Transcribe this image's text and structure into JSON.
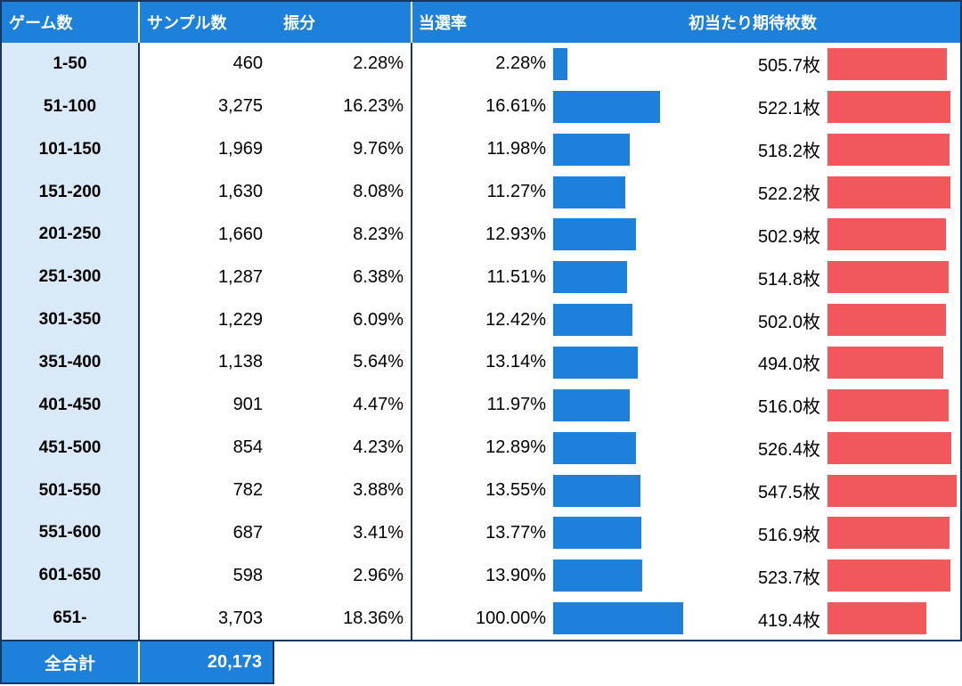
{
  "table": {
    "headers": {
      "games": "ゲーム数",
      "samples": "サンプル数",
      "distribution": "振分",
      "win_rate": "当選率",
      "expected_payout": "初当たり期待枚数"
    },
    "footer": {
      "label": "全合計",
      "total": "20,173"
    }
  },
  "colors": {
    "header_bg": "#1d80da",
    "label_bg": "#d9e9f8",
    "blue_bar": "#1d80da",
    "red_bar": "#f0585c",
    "border": "#16375f",
    "header_text": "#ffffff",
    "text": "#000000"
  },
  "chart_data": {
    "type": "table",
    "columns": [
      "ゲーム数",
      "サンプル数",
      "振分",
      "当選率",
      "初当たり期待枚数"
    ],
    "bar_columns": {
      "当選率": {
        "type": "bar",
        "color": "#1d80da"
      },
      "初当たり期待枚数": {
        "type": "bar",
        "color": "#f0585c"
      }
    },
    "rows": [
      {
        "games": "1-50",
        "samples": "460",
        "distribution": "2.28%",
        "win_rate": "2.28%",
        "expected": "505.7枚"
      },
      {
        "games": "51-100",
        "samples": "3,275",
        "distribution": "16.23%",
        "win_rate": "16.61%",
        "expected": "522.1枚"
      },
      {
        "games": "101-150",
        "samples": "1,969",
        "distribution": "9.76%",
        "win_rate": "11.98%",
        "expected": "518.2枚"
      },
      {
        "games": "151-200",
        "samples": "1,630",
        "distribution": "8.08%",
        "win_rate": "11.27%",
        "expected": "522.2枚"
      },
      {
        "games": "201-250",
        "samples": "1,660",
        "distribution": "8.23%",
        "win_rate": "12.93%",
        "expected": "502.9枚"
      },
      {
        "games": "251-300",
        "samples": "1,287",
        "distribution": "6.38%",
        "win_rate": "11.51%",
        "expected": "514.8枚"
      },
      {
        "games": "301-350",
        "samples": "1,229",
        "distribution": "6.09%",
        "win_rate": "12.42%",
        "expected": "502.0枚"
      },
      {
        "games": "351-400",
        "samples": "1,138",
        "distribution": "5.64%",
        "win_rate": "13.14%",
        "expected": "494.0枚"
      },
      {
        "games": "401-450",
        "samples": "901",
        "distribution": "4.47%",
        "win_rate": "11.97%",
        "expected": "516.0枚"
      },
      {
        "games": "451-500",
        "samples": "854",
        "distribution": "4.23%",
        "win_rate": "12.89%",
        "expected": "526.4枚"
      },
      {
        "games": "501-550",
        "samples": "782",
        "distribution": "3.88%",
        "win_rate": "13.55%",
        "expected": "547.5枚"
      },
      {
        "games": "551-600",
        "samples": "687",
        "distribution": "3.41%",
        "win_rate": "13.77%",
        "expected": "516.9枚"
      },
      {
        "games": "601-650",
        "samples": "598",
        "distribution": "2.96%",
        "win_rate": "13.90%",
        "expected": "523.7枚"
      },
      {
        "games": "651-",
        "samples": "3,703",
        "distribution": "18.36%",
        "win_rate": "100.00%",
        "expected": "419.4枚"
      }
    ],
    "total_samples": "20,173"
  }
}
